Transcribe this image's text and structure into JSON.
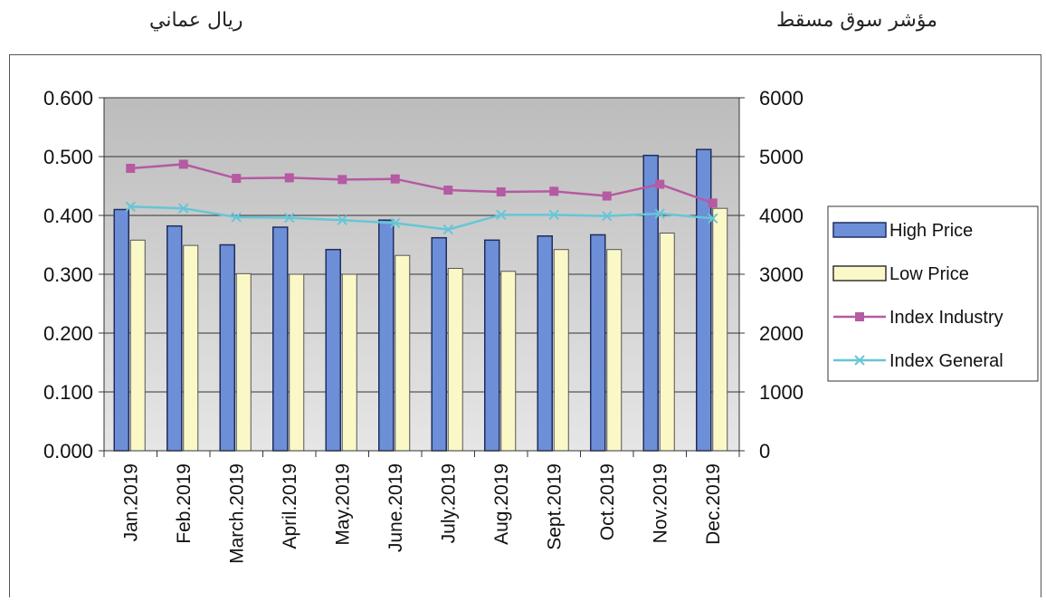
{
  "captions": {
    "left": "ريال عماني",
    "right": "مؤشر سوق مسقط"
  },
  "chart_data": {
    "type": "bar",
    "categories": [
      "Jan.2019",
      "Feb.2019",
      "March.2019",
      "April.2019",
      "May.2019",
      "June.2019",
      "July.2019",
      "Aug.2019",
      "Sept.2019",
      "Oct.2019",
      "Nov.2019",
      "Dec.2019"
    ],
    "series": [
      {
        "name": "High Price",
        "axis": "left",
        "kind": "bar",
        "color": "#6d8fd8",
        "values": [
          0.41,
          0.382,
          0.35,
          0.38,
          0.342,
          0.392,
          0.362,
          0.358,
          0.365,
          0.367,
          0.502,
          0.512
        ]
      },
      {
        "name": "Low Price",
        "axis": "left",
        "kind": "bar",
        "color": "#fbf8c8",
        "values": [
          0.358,
          0.349,
          0.301,
          0.3,
          0.3,
          0.332,
          0.31,
          0.305,
          0.342,
          0.342,
          0.37,
          0.412
        ]
      },
      {
        "name": "Index Industry",
        "axis": "right",
        "kind": "line",
        "color": "#b55aa3",
        "marker": "square",
        "values": [
          4800,
          4870,
          4630,
          4640,
          4610,
          4620,
          4430,
          4400,
          4410,
          4330,
          4530,
          4210
        ]
      },
      {
        "name": "Index General",
        "axis": "right",
        "kind": "line",
        "color": "#66c6d6",
        "marker": "x",
        "values": [
          4150,
          4120,
          3970,
          3960,
          3920,
          3870,
          3760,
          4010,
          4010,
          3990,
          4030,
          3950
        ]
      }
    ],
    "y_left": {
      "ticks": [
        "0.000",
        "0.100",
        "0.200",
        "0.300",
        "0.400",
        "0.500",
        "0.600"
      ],
      "range": [
        0,
        0.6
      ]
    },
    "y_right": {
      "ticks": [
        "0",
        "1000",
        "2000",
        "3000",
        "4000",
        "5000",
        "6000"
      ],
      "range": [
        0,
        6000
      ]
    },
    "grid": true,
    "legend_position": "right"
  }
}
